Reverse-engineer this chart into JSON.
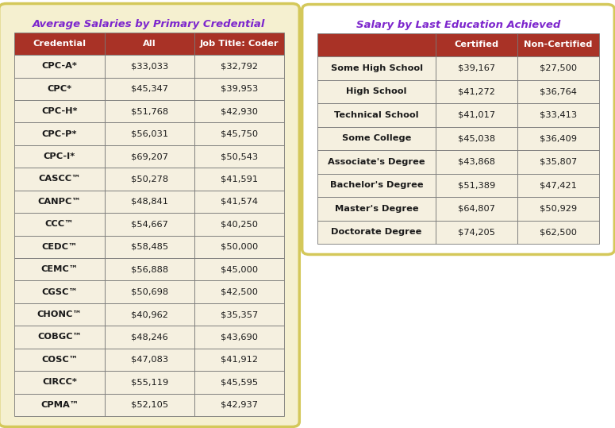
{
  "table1_title": "Average Salaries by Primary Credential",
  "table1_headers": [
    "Credential",
    "All",
    "Job Title: Coder"
  ],
  "table1_rows": [
    [
      "CPC-A*",
      "$33,033",
      "$32,792"
    ],
    [
      "CPC*",
      "$45,347",
      "$39,953"
    ],
    [
      "CPC-H*",
      "$51,768",
      "$42,930"
    ],
    [
      "CPC-P*",
      "$56,031",
      "$45,750"
    ],
    [
      "CPC-I*",
      "$69,207",
      "$50,543"
    ],
    [
      "CASCC™",
      "$50,278",
      "$41,591"
    ],
    [
      "CANPC™",
      "$48,841",
      "$41,574"
    ],
    [
      "CCC™",
      "$54,667",
      "$40,250"
    ],
    [
      "CEDC™",
      "$58,485",
      "$50,000"
    ],
    [
      "CEMC™",
      "$56,888",
      "$45,000"
    ],
    [
      "CGSC™",
      "$50,698",
      "$42,500"
    ],
    [
      "CHONC™",
      "$40,962",
      "$35,357"
    ],
    [
      "COBGC™",
      "$48,246",
      "$43,690"
    ],
    [
      "COSC™",
      "$47,083",
      "$41,912"
    ],
    [
      "CIRCC*",
      "$55,119",
      "$45,595"
    ],
    [
      "CPMA™",
      "$52,105",
      "$42,937"
    ]
  ],
  "table2_title": "Salary by Last Education Achieved",
  "table2_headers": [
    "",
    "Certified",
    "Non-Certified"
  ],
  "table2_rows": [
    [
      "Some High School",
      "$39,167",
      "$27,500"
    ],
    [
      "High School",
      "$41,272",
      "$36,764"
    ],
    [
      "Technical School",
      "$41,017",
      "$33,413"
    ],
    [
      "Some College",
      "$45,038",
      "$36,409"
    ],
    [
      "Associate's Degree",
      "$43,868",
      "$35,807"
    ],
    [
      "Bachelor's Degree",
      "$51,389",
      "$47,421"
    ],
    [
      "Master's Degree",
      "$64,807",
      "$50,929"
    ],
    [
      "Doctorate Degree",
      "$74,205",
      "$62,500"
    ]
  ],
  "header_bg": "#a93226",
  "header_fg": "#ffffff",
  "row_bg": "#f5f0e0",
  "title_color": "#7d26cd",
  "border_color": "#777777",
  "text_color": "#1a1a1a",
  "panel1_bg": "#f5f0d0",
  "panel1_border": "#d4c85a",
  "panel2_bg": "#ffffff",
  "panel2_border": "#d4c85a",
  "fig_bg": "#ffffff"
}
